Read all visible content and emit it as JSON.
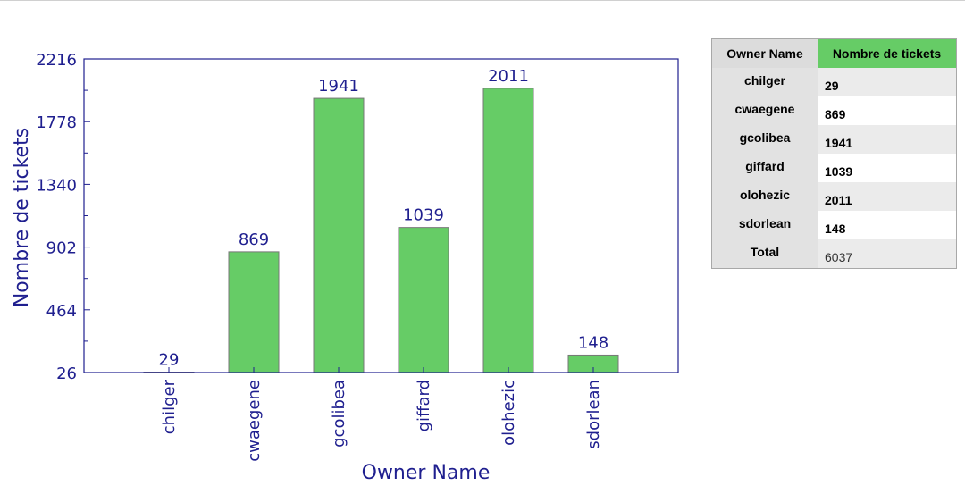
{
  "chart_data": {
    "type": "bar",
    "categories": [
      "chilger",
      "cwaegene",
      "gcolibea",
      "giffard",
      "olohezic",
      "sdorlean"
    ],
    "values": [
      29,
      869,
      1941,
      1039,
      2011,
      148
    ],
    "xlabel": "Owner Name",
    "ylabel": "Nombre de tickets",
    "ylim": [
      26,
      2216
    ],
    "yticks": [
      26,
      464,
      902,
      1340,
      1778,
      2216
    ],
    "bar_color": "#66cc66",
    "axis_color": "#1f1f8f",
    "grid": false
  },
  "table": {
    "headers": [
      "Owner Name",
      "Nombre de tickets"
    ],
    "rows": [
      {
        "owner": "chilger",
        "count": "29"
      },
      {
        "owner": "cwaegene",
        "count": "869"
      },
      {
        "owner": "gcolibea",
        "count": "1941"
      },
      {
        "owner": "giffard",
        "count": "1039"
      },
      {
        "owner": "olohezic",
        "count": "2011"
      },
      {
        "owner": "sdorlean",
        "count": "148"
      }
    ],
    "total_label": "Total",
    "total_value": "6037"
  }
}
